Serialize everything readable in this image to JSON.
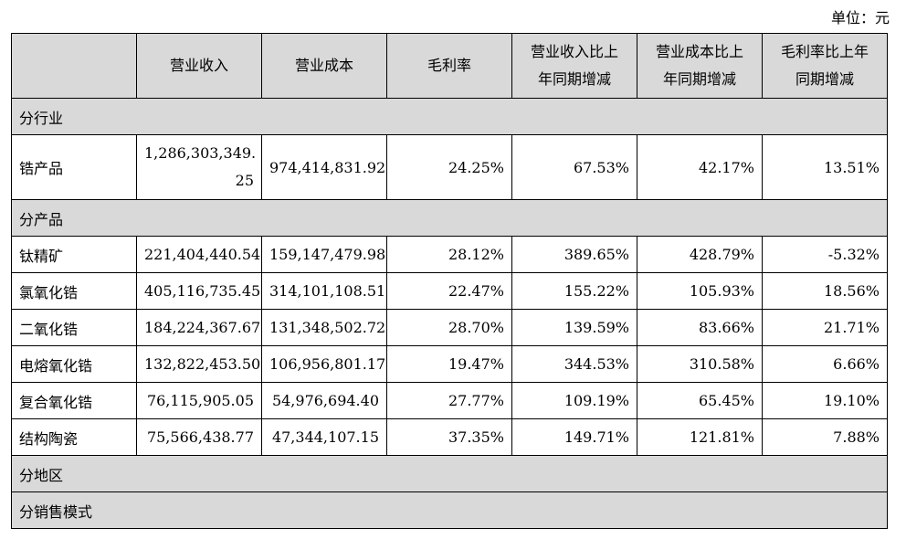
{
  "unit": "单位：元",
  "headers": [
    {
      "lines": [
        ""
      ]
    },
    {
      "lines": [
        "营业收入"
      ]
    },
    {
      "lines": [
        "营业成本"
      ]
    },
    {
      "lines": [
        "毛利率"
      ]
    },
    {
      "lines": [
        "营业收入比上",
        "年同期增减"
      ]
    },
    {
      "lines": [
        "营业成本比上",
        "年同期增减"
      ]
    },
    {
      "lines": [
        "毛利率比上年",
        "同期增减"
      ]
    }
  ],
  "sections": {
    "industry": "分行业",
    "product": "分产品",
    "region": "分地区",
    "sales_model": "分销售模式"
  },
  "industry_rows": [
    {
      "name": "锆产品",
      "revenue_line1": "1,286,303,349.",
      "revenue_line2": "25",
      "cost": "974,414,831.92",
      "margin": "24.25%",
      "rev_change": "67.53%",
      "cost_change": "42.17%",
      "margin_change": "13.51%"
    }
  ],
  "product_rows": [
    {
      "name": "钛精矿",
      "revenue": "221,404,440.54",
      "cost": "159,147,479.98",
      "margin": "28.12%",
      "rev_change": "389.65%",
      "cost_change": "428.79%",
      "margin_change": "-5.32%"
    },
    {
      "name": "氯氧化锆",
      "revenue": "405,116,735.45",
      "cost": "314,101,108.51",
      "margin": "22.47%",
      "rev_change": "155.22%",
      "cost_change": "105.93%",
      "margin_change": "18.56%"
    },
    {
      "name": "二氧化锆",
      "revenue": "184,224,367.67",
      "cost": "131,348,502.72",
      "margin": "28.70%",
      "rev_change": "139.59%",
      "cost_change": "83.66%",
      "margin_change": "21.71%"
    },
    {
      "name": "电熔氧化锆",
      "revenue": "132,822,453.50",
      "cost": "106,956,801.17",
      "margin": "19.47%",
      "rev_change": "344.53%",
      "cost_change": "310.58%",
      "margin_change": "6.66%"
    },
    {
      "name": "复合氧化锆",
      "revenue": "76,115,905.05",
      "cost": "54,976,694.40",
      "margin": "27.77%",
      "rev_change": "109.19%",
      "cost_change": "65.45%",
      "margin_change": "19.10%"
    },
    {
      "name": "结构陶瓷",
      "revenue": "75,566,438.77",
      "cost": "47,344,107.15",
      "margin": "37.35%",
      "rev_change": "149.71%",
      "cost_change": "121.81%",
      "margin_change": "7.88%"
    }
  ]
}
